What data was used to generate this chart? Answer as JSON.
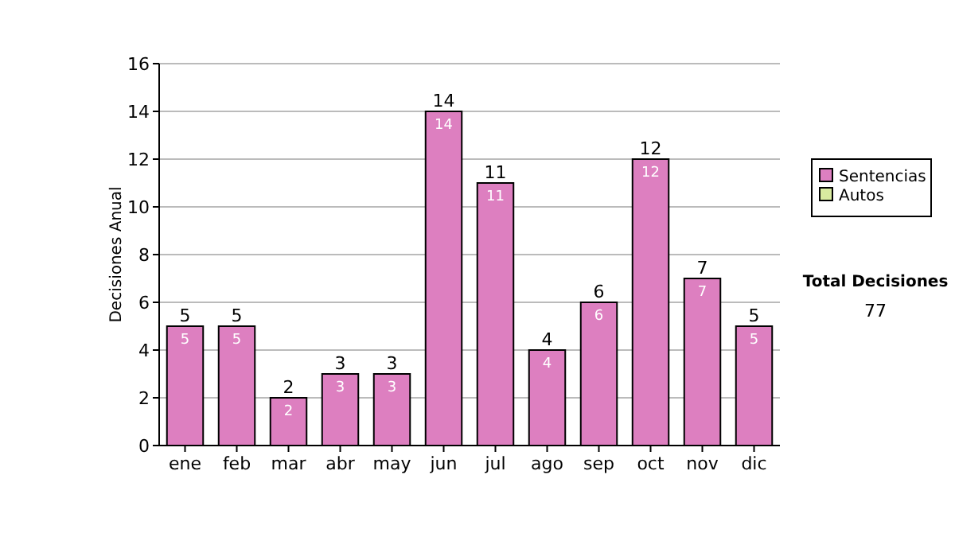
{
  "chart_data": {
    "type": "bar",
    "stacked": true,
    "ylabel": "Decisiones Anual",
    "categories": [
      "ene",
      "feb",
      "mar",
      "abr",
      "may",
      "jun",
      "jul",
      "ago",
      "sep",
      "oct",
      "nov",
      "dic"
    ],
    "series": [
      {
        "name": "Sentencias",
        "color": "#dd7fc0",
        "values": [
          5,
          5,
          2,
          3,
          3,
          14,
          11,
          4,
          6,
          12,
          7,
          5
        ],
        "value_labels": [
          "5",
          "5",
          "2",
          "3",
          "3",
          "14",
          "11",
          "4",
          "6",
          "12",
          "7",
          "5"
        ]
      },
      {
        "name": "Autos",
        "color": "#d8eaa0",
        "values": [
          0,
          0,
          0,
          0,
          0,
          0,
          0,
          0,
          0,
          0,
          0,
          0
        ]
      }
    ],
    "totals": [
      "5",
      "5",
      "2",
      "3",
      "3",
      "14",
      "11",
      "4",
      "6",
      "12",
      "7",
      "5"
    ],
    "ylim": [
      0,
      16
    ],
    "yticks": [
      0,
      2,
      4,
      6,
      8,
      10,
      12,
      14,
      16
    ],
    "grid": "y",
    "legend": "right",
    "annotations": [
      "Total Decisiones",
      "77"
    ]
  }
}
